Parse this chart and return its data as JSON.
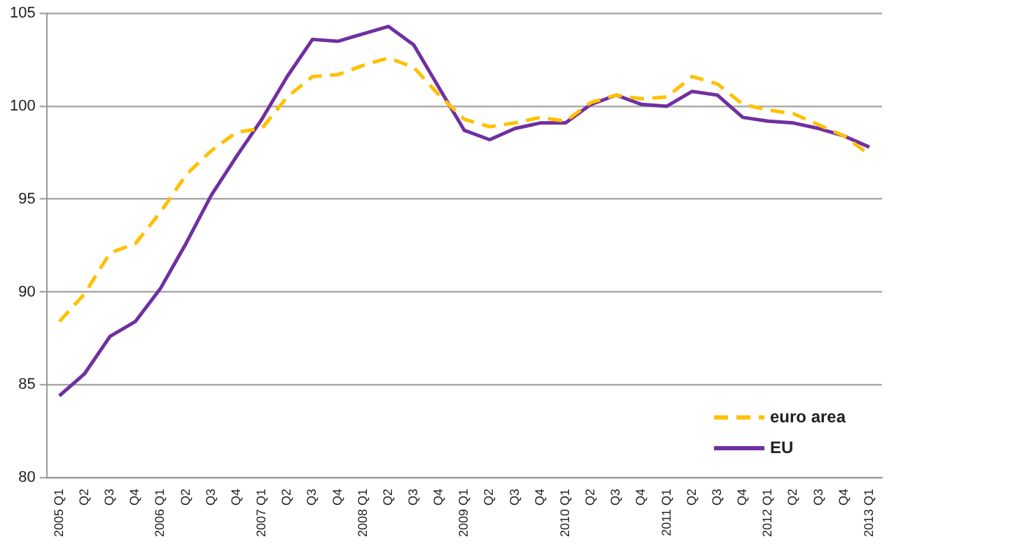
{
  "chart_data": {
    "type": "line",
    "categories": [
      "2005 Q1",
      "Q2",
      "Q3",
      "Q4",
      "2006 Q1",
      "Q2",
      "Q3",
      "Q4",
      "2007 Q1",
      "Q2",
      "Q3",
      "Q4",
      "2008 Q1",
      "Q2",
      "Q3",
      "Q4",
      "2009 Q1",
      "Q2",
      "Q3",
      "Q4",
      "2010 Q1",
      "Q2",
      "Q3",
      "Q4",
      "2011 Q1",
      "Q2",
      "Q3",
      "Q4",
      "2012 Q1",
      "Q2",
      "Q3",
      "Q4",
      "2013 Q1"
    ],
    "series": [
      {
        "name": "euro area",
        "color": "#ffc000",
        "line_style": "dashed",
        "values": [
          88.4,
          89.9,
          92.1,
          92.6,
          94.3,
          96.3,
          97.6,
          98.6,
          98.8,
          100.5,
          101.6,
          101.7,
          102.2,
          102.6,
          102.1,
          100.6,
          99.3,
          98.9,
          99.1,
          99.4,
          99.2,
          100.2,
          100.6,
          100.4,
          100.5,
          101.6,
          101.2,
          100.1,
          99.8,
          99.6,
          99.0,
          98.4,
          97.4
        ]
      },
      {
        "name": "EU",
        "color": "#7030a0",
        "line_style": "solid",
        "values": [
          84.4,
          85.6,
          87.6,
          88.4,
          90.2,
          92.6,
          95.2,
          97.3,
          99.3,
          101.6,
          103.6,
          103.5,
          103.9,
          104.3,
          103.3,
          101.0,
          98.7,
          98.2,
          98.8,
          99.1,
          99.1,
          100.1,
          100.6,
          100.1,
          100.0,
          100.8,
          100.6,
          99.4,
          99.2,
          99.1,
          98.8,
          98.4,
          97.8
        ]
      }
    ],
    "ylim": [
      80,
      105
    ],
    "yticks": [
      80,
      85,
      90,
      95,
      100,
      105
    ],
    "grid": "y",
    "legend": "bottom right",
    "marker": "none"
  }
}
